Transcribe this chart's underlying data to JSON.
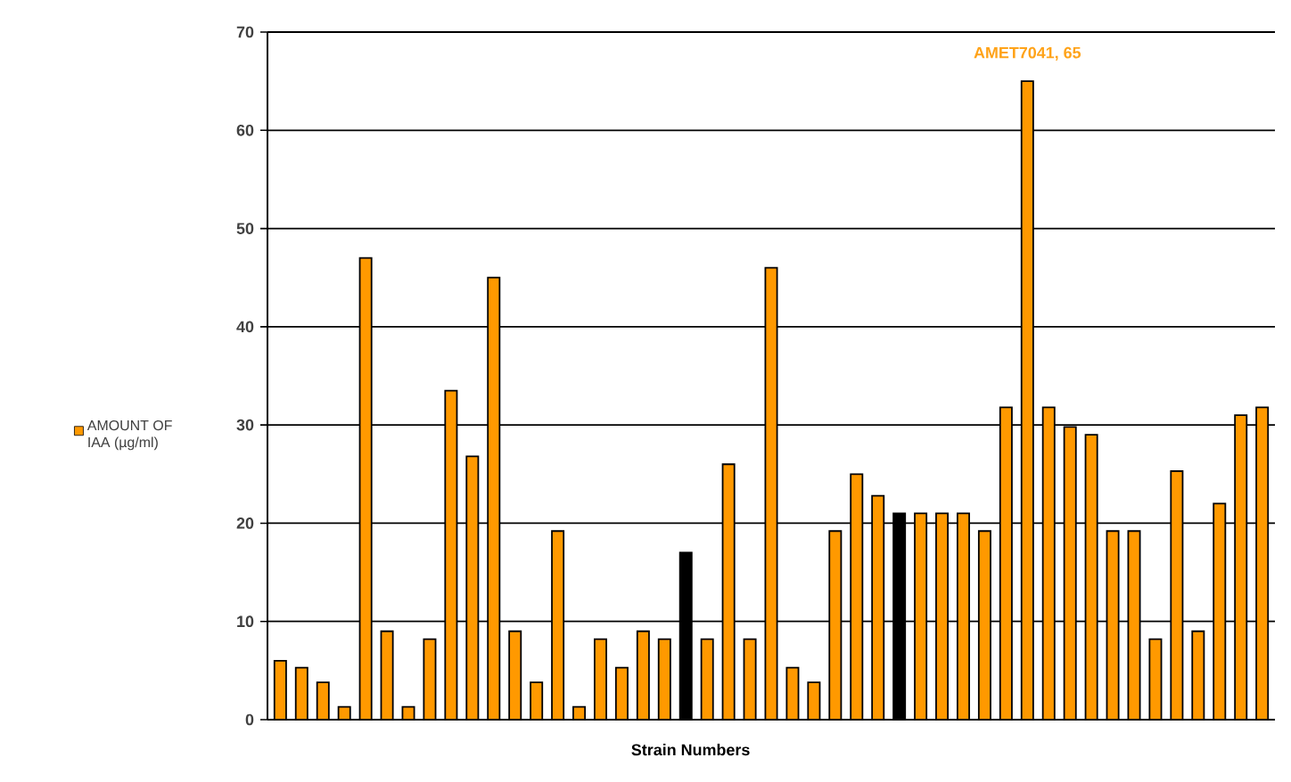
{
  "chart_data": {
    "type": "bar",
    "xlabel": "Strain Numbers",
    "categories": [
      null,
      null,
      null,
      null,
      null,
      null,
      null,
      null,
      null,
      null,
      null,
      null,
      null,
      null,
      null,
      null,
      null,
      null,
      null,
      null,
      null,
      null,
      null,
      null,
      null,
      null,
      null,
      null,
      null,
      null,
      null,
      null,
      null,
      null,
      null,
      null,
      null,
      null,
      null,
      null,
      null,
      null,
      null,
      null,
      null,
      null,
      null
    ],
    "series": [
      {
        "name": "AMOUNT OF IAA (µg/ml)",
        "color": "#ff9900",
        "values": [
          6,
          5.3,
          3.8,
          1.3,
          47,
          9,
          1.3,
          8.2,
          33.5,
          26.8,
          45,
          9,
          3.8,
          19.2,
          1.3,
          8.2,
          5.3,
          9,
          8.2,
          17,
          8.2,
          26,
          8.2,
          46,
          5.3,
          3.8,
          19.2,
          25,
          22.8,
          21,
          21,
          21,
          21,
          19.2,
          31.8,
          65,
          31.8,
          29.8,
          29,
          19.2,
          19.2,
          8.2,
          25.3,
          9,
          22,
          31,
          31.8
        ],
        "colors": [
          "#ff9900",
          "#ff9900",
          "#ff9900",
          "#ff9900",
          "#ff9900",
          "#ff9900",
          "#ff9900",
          "#ff9900",
          "#ff9900",
          "#ff9900",
          "#ff9900",
          "#ff9900",
          "#ff9900",
          "#ff9900",
          "#ff9900",
          "#ff9900",
          "#ff9900",
          "#ff9900",
          "#ff9900",
          "#000000",
          "#ff9900",
          "#ff9900",
          "#ff9900",
          "#ff9900",
          "#ff9900",
          "#ff9900",
          "#ff9900",
          "#ff9900",
          "#ff9900",
          "#000000",
          "#ff9900",
          "#ff9900",
          "#ff9900",
          "#ff9900",
          "#ff9900",
          "#ff9900",
          "#ff9900",
          "#ff9900",
          "#ff9900",
          "#ff9900",
          "#ff9900",
          "#ff9900",
          "#ff9900",
          "#ff9900",
          "#ff9900",
          "#ff9900",
          "#ff9900"
        ]
      }
    ],
    "ylim": [
      0,
      70
    ],
    "yticks": [
      0,
      10,
      20,
      30,
      40,
      50,
      60,
      70
    ],
    "grid": "y",
    "legend": "left",
    "annotations": [
      {
        "text": "AMET7041, 65",
        "y": 65
      }
    ]
  }
}
